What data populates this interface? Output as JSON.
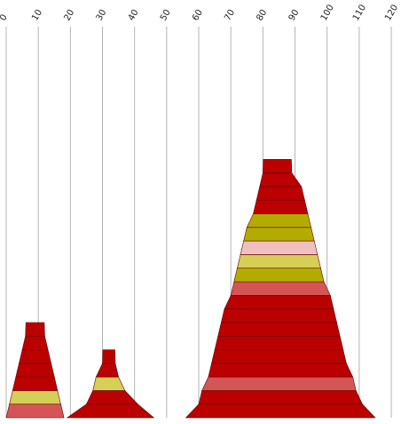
{
  "chart_data": {
    "type": "bar",
    "orientation": "vertical-stacked-pyramid",
    "x_axis": {
      "position": "top",
      "ticks": [
        0,
        10,
        20,
        30,
        40,
        50,
        60,
        70,
        80,
        90,
        100,
        110,
        120
      ],
      "tick_label_rotation_deg": -60,
      "xlim": [
        0,
        120
      ],
      "grid": true
    },
    "colors": {
      "dark_red": "#bb0000",
      "olive": "#b3ac00",
      "khaki": "#d4cf55",
      "salmon": "#d45555",
      "pink": "#f0c0c0",
      "grid": "#b4b4b4",
      "segment_edge": "#6a0000"
    },
    "stacks": [
      {
        "layers": [
          {
            "x_start": 0,
            "x_end": 18,
            "color": "salmon"
          },
          {
            "x_start": 1,
            "x_end": 17,
            "color": "khaki"
          },
          {
            "x_start": 2,
            "x_end": 16,
            "color": "dark_red"
          },
          {
            "x_start": 3,
            "x_end": 15,
            "color": "dark_red"
          },
          {
            "x_start": 4,
            "x_end": 14,
            "color": "dark_red"
          },
          {
            "x_start": 5,
            "x_end": 13,
            "color": "dark_red"
          },
          {
            "x_start": 6,
            "x_end": 12,
            "color": "dark_red"
          }
        ]
      },
      {
        "layers": [
          {
            "x_start": 19,
            "x_end": 46,
            "color": "dark_red"
          },
          {
            "x_start": 25,
            "x_end": 41,
            "color": "dark_red"
          },
          {
            "x_start": 27,
            "x_end": 37,
            "color": "khaki"
          },
          {
            "x_start": 28,
            "x_end": 35,
            "color": "dark_red"
          },
          {
            "x_start": 30,
            "x_end": 34,
            "color": "dark_red"
          }
        ]
      },
      {
        "layers": [
          {
            "x_start": 56,
            "x_end": 115,
            "color": "dark_red"
          },
          {
            "x_start": 60,
            "x_end": 111,
            "color": "dark_red"
          },
          {
            "x_start": 61,
            "x_end": 109,
            "color": "salmon"
          },
          {
            "x_start": 63,
            "x_end": 108,
            "color": "dark_red"
          },
          {
            "x_start": 64,
            "x_end": 106,
            "color": "dark_red"
          },
          {
            "x_start": 65,
            "x_end": 105,
            "color": "dark_red"
          },
          {
            "x_start": 66,
            "x_end": 104,
            "color": "dark_red"
          },
          {
            "x_start": 67,
            "x_end": 103,
            "color": "dark_red"
          },
          {
            "x_start": 68,
            "x_end": 102,
            "color": "dark_red"
          },
          {
            "x_start": 70,
            "x_end": 101,
            "color": "salmon"
          },
          {
            "x_start": 71,
            "x_end": 99,
            "color": "olive"
          },
          {
            "x_start": 72,
            "x_end": 98,
            "color": "khaki"
          },
          {
            "x_start": 73,
            "x_end": 97,
            "color": "pink"
          },
          {
            "x_start": 74,
            "x_end": 96,
            "color": "olive"
          },
          {
            "x_start": 75,
            "x_end": 95,
            "color": "olive"
          },
          {
            "x_start": 77,
            "x_end": 94,
            "color": "dark_red"
          },
          {
            "x_start": 78,
            "x_end": 93,
            "color": "dark_red"
          },
          {
            "x_start": 79,
            "x_end": 92,
            "color": "dark_red"
          },
          {
            "x_start": 80,
            "x_end": 89,
            "color": "dark_red"
          }
        ]
      }
    ]
  }
}
